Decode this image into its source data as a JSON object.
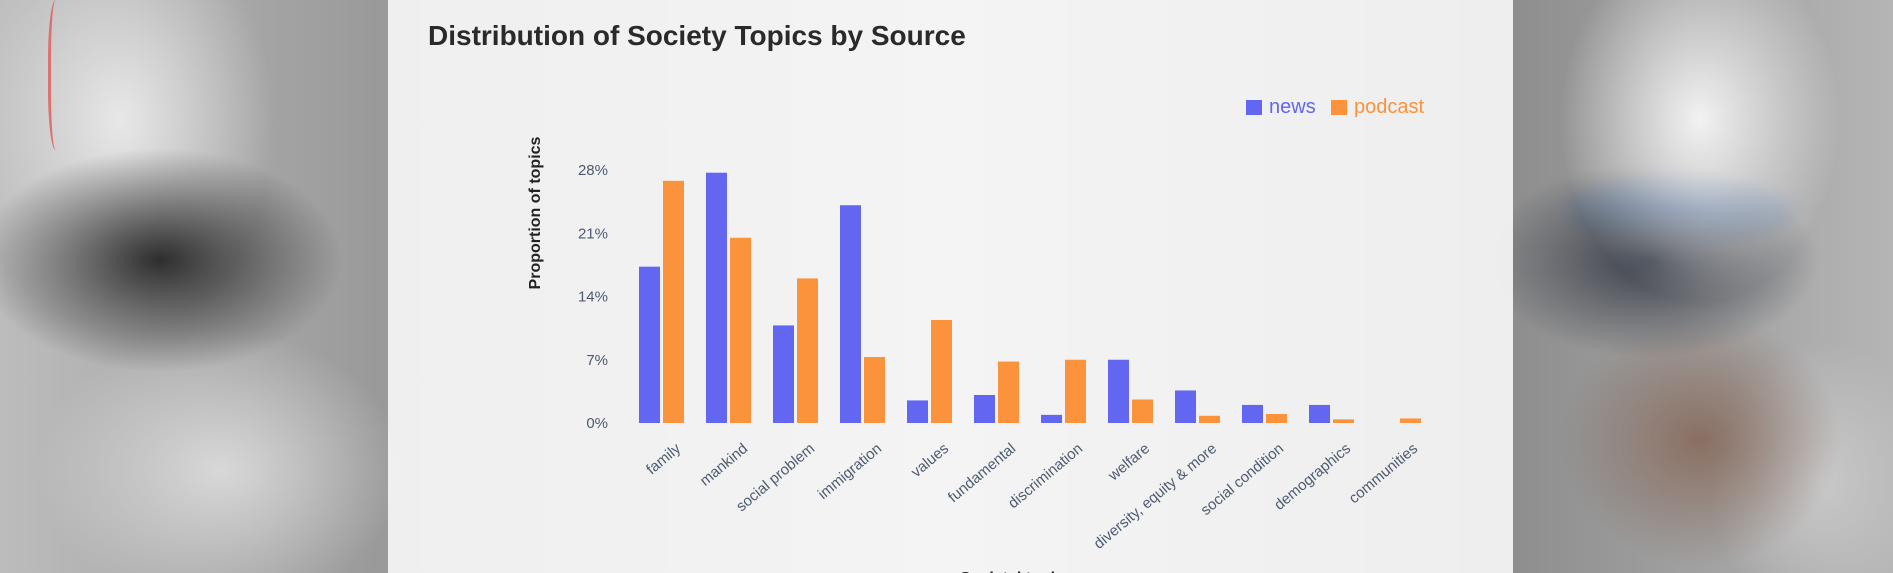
{
  "page": {
    "title": "Distribution of Society Topics by Source"
  },
  "chart_data": {
    "type": "bar",
    "title": "Distribution of Society Topics by Source",
    "ylabel": "Proportion of topics",
    "xlabel": "Societal topic",
    "ylim": [
      0,
      0.28
    ],
    "yticks": [
      {
        "value": 0,
        "label": "0%"
      },
      {
        "value": 0.07,
        "label": "7%"
      },
      {
        "value": 0.14,
        "label": "14%"
      },
      {
        "value": 0.21,
        "label": "21%"
      },
      {
        "value": 0.28,
        "label": "28%"
      }
    ],
    "legend_position": "top-right",
    "grid": false,
    "categories": [
      "family",
      "mankind",
      "social problem",
      "immigration",
      "values",
      "fundamental",
      "discrimination",
      "welfare",
      "diversity, equity & more",
      "social condition",
      "demographics",
      "communities"
    ],
    "series": [
      {
        "name": "news",
        "color": "#6366f1",
        "values": [
          0.173,
          0.277,
          0.108,
          0.241,
          0.025,
          0.031,
          0.009,
          0.07,
          0.036,
          0.02,
          0.02,
          0.0
        ]
      },
      {
        "name": "podcast",
        "color": "#fb923c",
        "values": [
          0.268,
          0.205,
          0.16,
          0.073,
          0.114,
          0.068,
          0.07,
          0.026,
          0.008,
          0.01,
          0.004,
          0.005
        ]
      }
    ]
  }
}
